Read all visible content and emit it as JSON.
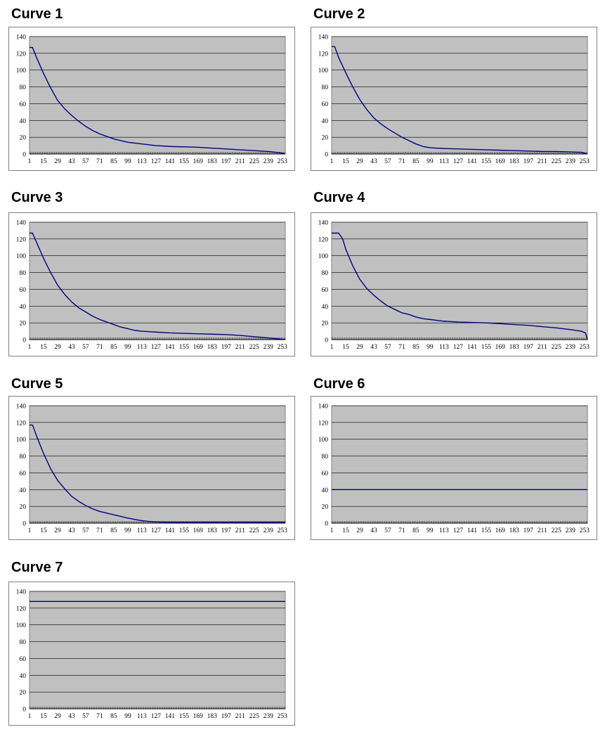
{
  "chart_data": [
    {
      "type": "line",
      "title": "Curve 1",
      "ylim": [
        0,
        140
      ],
      "yticks": [
        0,
        20,
        40,
        60,
        80,
        100,
        120,
        140
      ],
      "xlim": [
        1,
        256
      ],
      "xticks": [
        1,
        15,
        29,
        43,
        57,
        71,
        85,
        99,
        113,
        127,
        141,
        155,
        169,
        183,
        197,
        211,
        225,
        239,
        253
      ],
      "grid": true,
      "legend": "none",
      "series": [
        {
          "color": "#000080",
          "x": [
            1,
            4,
            8,
            15,
            22,
            29,
            36,
            43,
            50,
            57,
            64,
            71,
            78,
            85,
            92,
            99,
            113,
            127,
            141,
            155,
            169,
            183,
            197,
            211,
            225,
            239,
            247,
            253,
            256
          ],
          "y": [
            127,
            127,
            115,
            96,
            79,
            64,
            54,
            46,
            39,
            33,
            28,
            24,
            21,
            18,
            16,
            14,
            12,
            10,
            9,
            8.5,
            8,
            7,
            6,
            5,
            4,
            3,
            2,
            1,
            0
          ]
        }
      ]
    },
    {
      "type": "line",
      "title": "Curve 2",
      "ylim": [
        0,
        140
      ],
      "yticks": [
        0,
        20,
        40,
        60,
        80,
        100,
        120,
        140
      ],
      "xlim": [
        1,
        256
      ],
      "xticks": [
        1,
        15,
        29,
        43,
        57,
        71,
        85,
        99,
        113,
        127,
        141,
        155,
        169,
        183,
        197,
        211,
        225,
        239,
        253
      ],
      "grid": true,
      "legend": "none",
      "series": [
        {
          "color": "#000080",
          "x": [
            1,
            4,
            8,
            15,
            22,
            29,
            36,
            43,
            50,
            57,
            64,
            71,
            78,
            85,
            92,
            99,
            106,
            113,
            127,
            141,
            155,
            169,
            183,
            197,
            211,
            225,
            239,
            250,
            253,
            256
          ],
          "y": [
            128,
            128,
            115,
            97,
            80,
            65,
            53,
            43,
            36,
            30,
            25,
            20,
            16,
            12,
            9,
            7.5,
            7,
            6.5,
            6,
            5.5,
            5,
            4.5,
            4,
            3.5,
            3,
            3,
            2.5,
            2,
            1,
            0
          ]
        }
      ]
    },
    {
      "type": "line",
      "title": "Curve 3",
      "ylim": [
        0,
        140
      ],
      "yticks": [
        0,
        20,
        40,
        60,
        80,
        100,
        120,
        140
      ],
      "xlim": [
        1,
        256
      ],
      "xticks": [
        1,
        15,
        29,
        43,
        57,
        71,
        85,
        99,
        113,
        127,
        141,
        155,
        169,
        183,
        197,
        211,
        225,
        239,
        253
      ],
      "grid": true,
      "legend": "none",
      "series": [
        {
          "color": "#000080",
          "x": [
            1,
            4,
            8,
            15,
            22,
            29,
            36,
            43,
            50,
            57,
            64,
            71,
            78,
            85,
            92,
            99,
            106,
            113,
            120,
            127,
            141,
            155,
            169,
            183,
            197,
            211,
            225,
            239,
            253,
            256
          ],
          "y": [
            127,
            127,
            116,
            97,
            80,
            65,
            54,
            45,
            38,
            33,
            28,
            24,
            21,
            18,
            15,
            13,
            11,
            10,
            9.5,
            9,
            8,
            7.5,
            7,
            6.5,
            6,
            5,
            3.5,
            2,
            0.5,
            0
          ]
        }
      ]
    },
    {
      "type": "line",
      "title": "Curve 4",
      "ylim": [
        0,
        140
      ],
      "yticks": [
        0,
        20,
        40,
        60,
        80,
        100,
        120,
        140
      ],
      "xlim": [
        1,
        256
      ],
      "xticks": [
        1,
        15,
        29,
        43,
        57,
        71,
        85,
        99,
        113,
        127,
        141,
        155,
        169,
        183,
        197,
        211,
        225,
        239,
        253
      ],
      "grid": true,
      "legend": "none",
      "series": [
        {
          "color": "#000080",
          "x": [
            1,
            8,
            12,
            15,
            22,
            29,
            36,
            43,
            50,
            57,
            64,
            71,
            78,
            85,
            92,
            99,
            113,
            127,
            141,
            155,
            169,
            183,
            197,
            211,
            225,
            239,
            250,
            254,
            256
          ],
          "y": [
            127,
            127,
            120,
            108,
            88,
            72,
            61,
            53,
            46,
            40,
            36,
            32,
            30,
            27,
            25,
            24,
            22,
            21,
            20.5,
            20,
            19,
            18,
            17,
            15.5,
            14,
            12,
            10,
            8,
            0
          ]
        }
      ]
    },
    {
      "type": "line",
      "title": "Curve 5",
      "ylim": [
        0,
        140
      ],
      "yticks": [
        0,
        20,
        40,
        60,
        80,
        100,
        120,
        140
      ],
      "xlim": [
        1,
        256
      ],
      "xticks": [
        1,
        15,
        29,
        43,
        57,
        71,
        85,
        99,
        113,
        127,
        141,
        155,
        169,
        183,
        197,
        211,
        225,
        239,
        253
      ],
      "grid": true,
      "legend": "none",
      "series": [
        {
          "color": "#000080",
          "x": [
            1,
            4,
            8,
            15,
            22,
            29,
            36,
            43,
            50,
            57,
            64,
            71,
            78,
            85,
            92,
            99,
            106,
            113,
            120,
            127,
            141,
            155,
            169,
            183,
            197,
            211,
            225,
            239,
            253,
            256
          ],
          "y": [
            117,
            117,
            104,
            83,
            65,
            51,
            41,
            32,
            26,
            21,
            17,
            14,
            12,
            10,
            8,
            6,
            4.5,
            3,
            2,
            1.5,
            1.2,
            1.2,
            1.2,
            1.2,
            1.2,
            1.2,
            1.2,
            1.2,
            1.2,
            1.2
          ]
        }
      ]
    },
    {
      "type": "line",
      "title": "Curve 6",
      "ylim": [
        0,
        140
      ],
      "yticks": [
        0,
        20,
        40,
        60,
        80,
        100,
        120,
        140
      ],
      "xlim": [
        1,
        256
      ],
      "xticks": [
        1,
        15,
        29,
        43,
        57,
        71,
        85,
        99,
        113,
        127,
        141,
        155,
        169,
        183,
        197,
        211,
        225,
        239,
        253
      ],
      "grid": true,
      "legend": "none",
      "series": [
        {
          "color": "#000080",
          "x": [
            1,
            256
          ],
          "y": [
            40,
            40
          ]
        }
      ]
    },
    {
      "type": "line",
      "title": "Curve 7",
      "ylim": [
        0,
        140
      ],
      "yticks": [
        0,
        20,
        40,
        60,
        80,
        100,
        120,
        140
      ],
      "xlim": [
        1,
        256
      ],
      "xticks": [
        1,
        15,
        29,
        43,
        57,
        71,
        85,
        99,
        113,
        127,
        141,
        155,
        169,
        183,
        197,
        211,
        225,
        239,
        253
      ],
      "grid": true,
      "legend": "none",
      "series": [
        {
          "color": "#000080",
          "x": [
            1,
            256
          ],
          "y": [
            128,
            128
          ]
        }
      ]
    }
  ],
  "colors": {
    "plot_background": "#c0c0c0",
    "gridline": "#000000",
    "frame_border": "#808080",
    "line": "#000080"
  }
}
